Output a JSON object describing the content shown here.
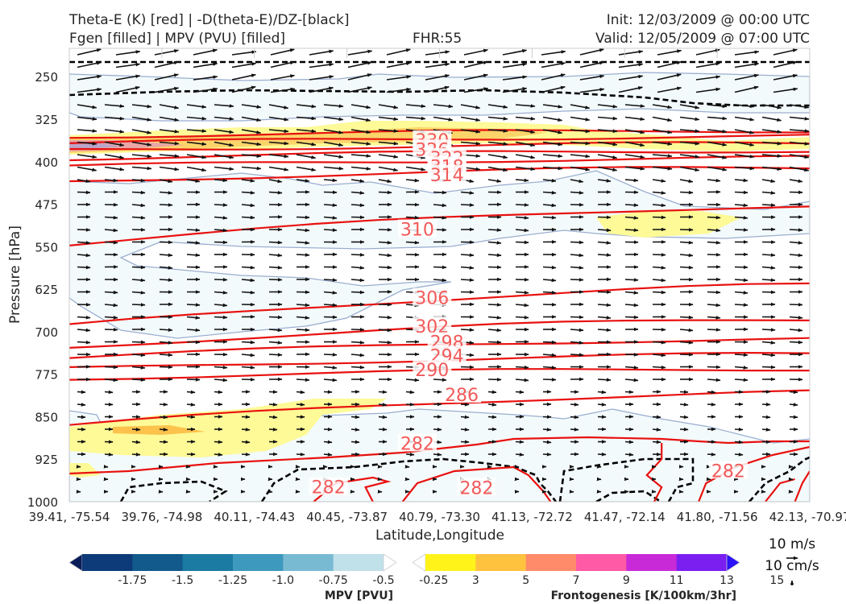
{
  "header": {
    "title_left_1": "Theta-E (K) [red] | -D(theta-E)/DZ-[black]",
    "title_left_2": "Fgen [filled] | MPV (PVU) [filled]",
    "fhr": "FHR:55",
    "init": "Init: 12/03/2009 @ 00:00 UTC",
    "valid": "Valid: 12/05/2009 @ 07:00 UTC"
  },
  "chart_data": {
    "type": "cross-section",
    "xlabel": "Latitude,Longitude",
    "ylabel": "Pressure [hPa]",
    "x_ticks": [
      "39.41, -75.54",
      "39.76, -74.98",
      "40.11, -74.43",
      "40.45, -73.87",
      "40.79, -73.30",
      "41.13, -72.72",
      "41.47, -72.14",
      "41.80, -71.56",
      "42.13, -70.97"
    ],
    "y_ticks": [
      250,
      325,
      400,
      475,
      550,
      625,
      700,
      775,
      850,
      925,
      1000
    ],
    "ylim": [
      1000,
      200
    ],
    "theta_e_labels": [
      {
        "value": "330",
        "x": 0.49,
        "p": 362
      },
      {
        "value": "326",
        "x": 0.49,
        "p": 378
      },
      {
        "value": "322",
        "x": 0.51,
        "p": 393
      },
      {
        "value": "318",
        "x": 0.51,
        "p": 408
      },
      {
        "value": "314",
        "x": 0.51,
        "p": 423
      },
      {
        "value": "310",
        "x": 0.47,
        "p": 519
      },
      {
        "value": "306",
        "x": 0.49,
        "p": 640
      },
      {
        "value": "302",
        "x": 0.49,
        "p": 690
      },
      {
        "value": "298",
        "x": 0.51,
        "p": 718
      },
      {
        "value": "294",
        "x": 0.51,
        "p": 742
      },
      {
        "value": "290",
        "x": 0.49,
        "p": 767
      },
      {
        "value": "286",
        "x": 0.53,
        "p": 811
      },
      {
        "value": "282",
        "x": 0.47,
        "p": 897
      },
      {
        "value": "282",
        "x": 0.35,
        "p": 974
      },
      {
        "value": "282",
        "x": 0.55,
        "p": 975
      },
      {
        "value": "282",
        "x": 0.89,
        "p": 945
      }
    ],
    "theta_e_lines": [
      {
        "value": 334,
        "p_left": 355,
        "p_right": 345
      },
      {
        "value": 330,
        "p_left": 368,
        "p_right": 355
      },
      {
        "value": 326,
        "p_left": 380,
        "p_right": 368
      },
      {
        "value": 322,
        "p_left": 394,
        "p_right": 380
      },
      {
        "value": 318,
        "p_left": 409,
        "p_right": 393
      },
      {
        "value": 314,
        "p_left": 435,
        "p_right": 410
      },
      {
        "value": 310,
        "p_left": 545,
        "p_right": 478
      },
      {
        "value": 306,
        "p_left": 690,
        "p_right": 618
      },
      {
        "value": 302,
        "p_left": 727,
        "p_right": 677
      },
      {
        "value": 298,
        "p_left": 745,
        "p_right": 712
      },
      {
        "value": 294,
        "p_left": 766,
        "p_right": 740
      },
      {
        "value": 290,
        "p_left": 782,
        "p_right": 765
      },
      {
        "value": 286,
        "p_left": 865,
        "p_right": 806
      }
    ],
    "vector_reference": [
      "10 m/s",
      "10 cm/s"
    ],
    "colorbars": [
      {
        "label": "MPV [PVU]",
        "ticks": [
          "-1.75",
          "-1.5",
          "-1.25",
          "-1.0",
          "-0.75",
          "-0.5",
          "-0.25"
        ],
        "colors": [
          "#081d58",
          "#0d3a78",
          "#125a8c",
          "#1c7ba3",
          "#3d99bd",
          "#79bad3",
          "#c0e0ea",
          "#ffffff"
        ]
      },
      {
        "label": "Frontogenesis [K/100km/3hr]",
        "ticks": [
          "3",
          "5",
          "7",
          "9",
          "11",
          "13",
          "15"
        ],
        "colors": [
          "#ffffff",
          "#fff31a",
          "#ffc23f",
          "#ff8b6a",
          "#ff5aa6",
          "#c92ad8",
          "#7a1ff0",
          "#2b12f7"
        ]
      }
    ]
  }
}
